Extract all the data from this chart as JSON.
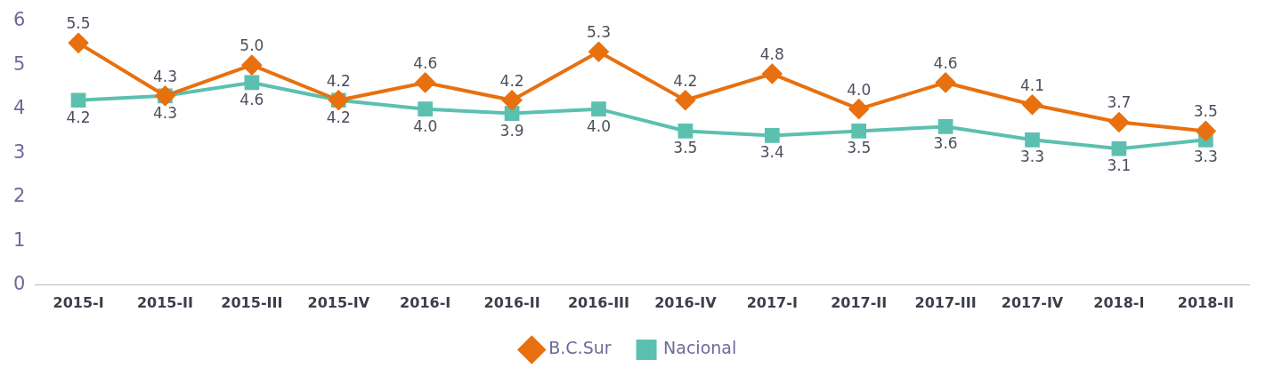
{
  "chart_data": {
    "type": "line",
    "categories": [
      "2015-I",
      "2015-II",
      "2015-III",
      "2015-IV",
      "2016-I",
      "2016-II",
      "2016-III",
      "2016-IV",
      "2017-I",
      "2017-II",
      "2017-III",
      "2017-IV",
      "2018-I",
      "2018-II"
    ],
    "series": [
      {
        "name": "B.C.Sur",
        "color": "#e8700f",
        "marker": "diamond",
        "values": [
          5.5,
          4.3,
          5.0,
          4.2,
          4.6,
          4.2,
          5.3,
          4.2,
          4.8,
          4.0,
          4.6,
          4.1,
          3.7,
          3.5
        ],
        "value_labels": [
          "5.5",
          "4.3",
          "5.0",
          "4.2",
          "4.6",
          "4.2",
          "5.3",
          "4.2",
          "4.8",
          "4.0",
          "4.6",
          "4.1",
          "3.7",
          "3.5"
        ]
      },
      {
        "name": "Nacional",
        "color": "#5cc0b0",
        "marker": "square",
        "values": [
          4.2,
          4.3,
          4.6,
          4.2,
          4.0,
          3.9,
          4.0,
          3.5,
          3.4,
          3.5,
          3.6,
          3.3,
          3.1,
          3.3
        ],
        "value_labels": [
          "4.2",
          "4.3",
          "4.6",
          "4.2",
          "4.0",
          "3.9",
          "4.0",
          "3.5",
          "3.4",
          "3.5",
          "3.6",
          "3.3",
          "3.1",
          "3.3"
        ]
      }
    ],
    "ylim": [
      0,
      6
    ],
    "yticks": [
      0,
      1,
      2,
      3,
      4,
      5,
      6
    ],
    "grid": false,
    "legend": "bottom",
    "line_style": "solid"
  }
}
